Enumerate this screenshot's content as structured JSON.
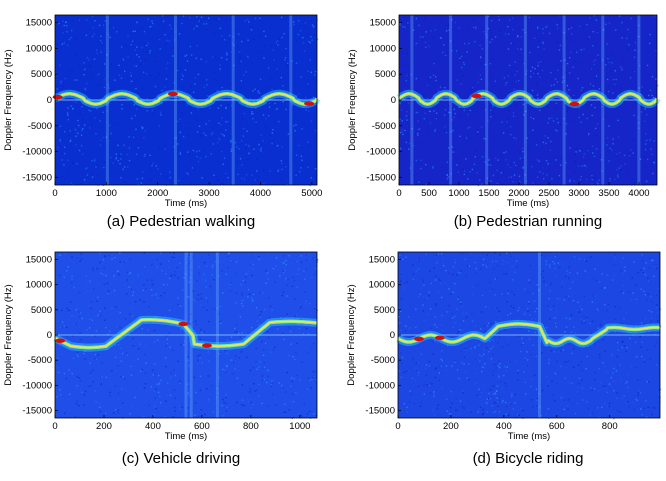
{
  "chart_data": [
    {
      "type": "heatmap",
      "panel": "a",
      "caption": "(a) Pedestrian walking",
      "xlabel": "Time (ms)",
      "ylabel": "Doppler Frequency (Hz)",
      "xlim": [
        0,
        5100
      ],
      "ylim": [
        -16500,
        16500
      ],
      "xticks": [
        0,
        1000,
        2000,
        3000,
        4000,
        5000
      ],
      "yticks": [
        15000,
        10000,
        5000,
        0,
        -5000,
        -10000,
        -15000
      ],
      "colormap": "jet",
      "pattern": "walk",
      "background": "#0a2fd0"
    },
    {
      "type": "heatmap",
      "panel": "b",
      "caption": "(b) Pedestrian running",
      "xlabel": "Time (ms)",
      "ylabel": "Doppler Frequency (Hz)",
      "xlim": [
        0,
        4300
      ],
      "ylim": [
        -16500,
        16500
      ],
      "xticks": [
        0,
        500,
        1000,
        1500,
        2000,
        2500,
        3000,
        3500,
        4000
      ],
      "yticks": [
        15000,
        10000,
        5000,
        0,
        -5000,
        -10000,
        -15000
      ],
      "colormap": "jet",
      "pattern": "run",
      "background": "#1525c8"
    },
    {
      "type": "heatmap",
      "panel": "c",
      "caption": "(c) Vehicle driving",
      "xlabel": "Time (ms)",
      "ylabel": "Doppler Frequency (Hz)",
      "xlim": [
        0,
        1070
      ],
      "ylim": [
        -16500,
        16500
      ],
      "xticks": [
        0,
        200,
        400,
        600,
        800,
        1000
      ],
      "yticks": [
        15000,
        10000,
        5000,
        0,
        -5000,
        -10000,
        -15000
      ],
      "colormap": "jet",
      "pattern": "vehicle",
      "background": "#1f4ee8"
    },
    {
      "type": "heatmap",
      "panel": "d",
      "caption": "(d) Bicycle riding",
      "xlabel": "Time (ms)",
      "ylabel": "Doppler Frequency (Hz)",
      "xlim": [
        0,
        990
      ],
      "ylim": [
        -16500,
        16500
      ],
      "xticks": [
        0,
        200,
        400,
        600,
        800
      ],
      "yticks": [
        15000,
        10000,
        5000,
        0,
        -5000,
        -10000,
        -15000
      ],
      "colormap": "jet",
      "pattern": "bicycle",
      "background": "#1c47e2"
    }
  ]
}
